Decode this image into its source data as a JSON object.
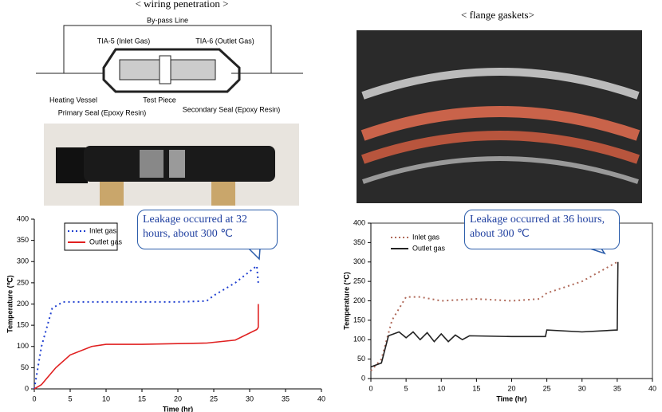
{
  "panels": {
    "left_title": "< wiring penetration >",
    "right_title": "< flange gaskets>"
  },
  "diagram": {
    "labels": [
      "By-pass Line",
      "TIA-5 (Inlet Gas)",
      "TIA-6 (Outlet Gas)",
      "Heating Vessel",
      "Test Piece",
      "Primary Seal (Epoxy Resin)",
      "Secondary Seal (Epoxy Resin)"
    ]
  },
  "chart_data": [
    {
      "type": "line",
      "x_label": "Time (hr)",
      "y_label": "Temperature (℃)",
      "xlim": [
        0,
        40
      ],
      "xticks": [
        0,
        5,
        10,
        15,
        20,
        25,
        30,
        35,
        40
      ],
      "ylim": [
        0,
        400
      ],
      "yticks": [
        0,
        50,
        100,
        150,
        200,
        250,
        300,
        350,
        400
      ],
      "annotation": "Leakage occurred at 32 hours, about 300 ℃",
      "legend": "upper left",
      "series": [
        {
          "name": "Inlet gas",
          "color": "#1f3fd0",
          "style": "dotted",
          "x": [
            0,
            1,
            2,
            2.5,
            4,
            10,
            15,
            20,
            24,
            25,
            28,
            31,
            31.2
          ],
          "values": [
            0,
            100,
            160,
            190,
            205,
            205,
            205,
            205,
            207,
            220,
            250,
            290,
            250
          ]
        },
        {
          "name": "Outlet gas",
          "color": "#e02020",
          "style": "solid",
          "x": [
            0,
            1,
            2,
            3,
            5,
            8,
            10,
            15,
            24,
            28,
            31,
            31.2,
            31.2
          ],
          "values": [
            0,
            10,
            30,
            50,
            80,
            100,
            105,
            105,
            108,
            115,
            140,
            145,
            200
          ]
        }
      ]
    },
    {
      "type": "line",
      "x_label": "Time (hr)",
      "y_label": "Temperature (°C)",
      "xlim": [
        0,
        40
      ],
      "xticks": [
        0,
        5,
        10,
        15,
        20,
        25,
        30,
        35,
        40
      ],
      "ylim": [
        0,
        400
      ],
      "yticks": [
        0,
        50,
        100,
        150,
        200,
        250,
        300,
        350,
        400
      ],
      "annotation": "Leakage occurred at 36 hours, about 300 ℃",
      "legend": "upper left",
      "series": [
        {
          "name": "Inlet gas",
          "color": "#b06a5a",
          "style": "dotted",
          "x": [
            0,
            1.5,
            3,
            5,
            7,
            10,
            15,
            20,
            24,
            25,
            30,
            35
          ],
          "values": [
            20,
            50,
            150,
            210,
            210,
            200,
            205,
            200,
            205,
            220,
            250,
            300
          ]
        },
        {
          "name": "Outlet gas",
          "color": "#222222",
          "style": "solid",
          "x": [
            0,
            1.5,
            2.5,
            4,
            5,
            6,
            7,
            8,
            9,
            10,
            11,
            12,
            13,
            14,
            20,
            24.8,
            25,
            30,
            35,
            35.1
          ],
          "values": [
            30,
            40,
            110,
            120,
            105,
            120,
            100,
            118,
            95,
            115,
            95,
            112,
            100,
            110,
            108,
            108,
            125,
            120,
            125,
            300
          ]
        }
      ]
    }
  ]
}
